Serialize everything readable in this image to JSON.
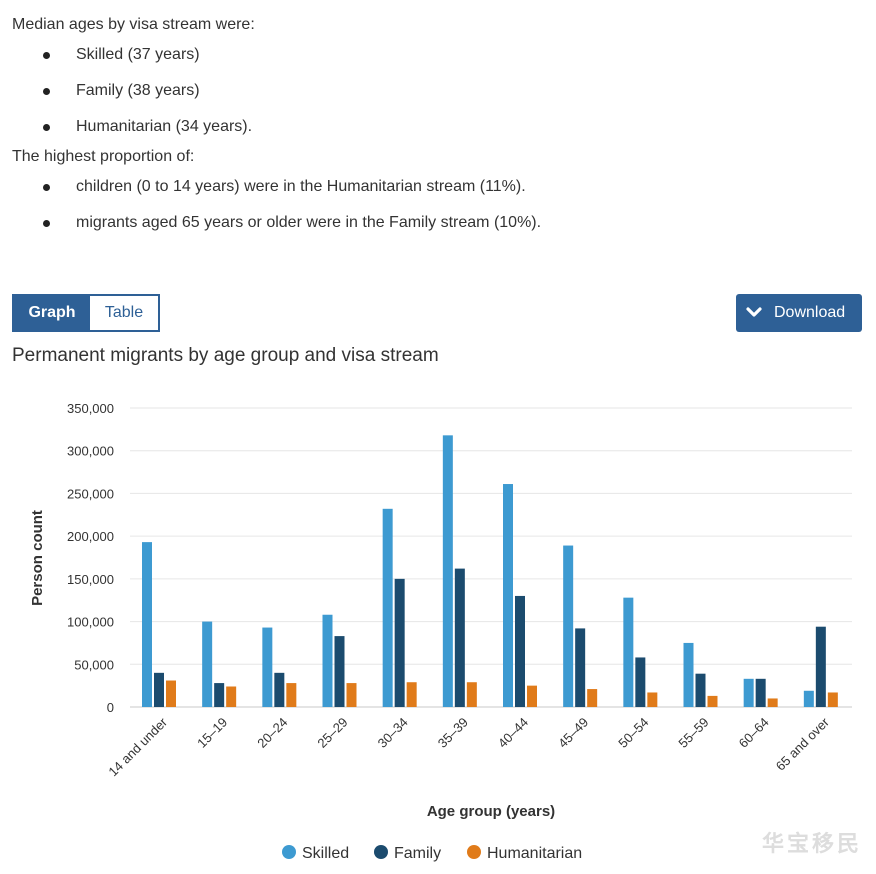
{
  "intro": {
    "p1": "Median ages by visa stream were:",
    "list1": [
      "Skilled (37 years)",
      "Family (38 years)",
      "Humanitarian (34 years)."
    ],
    "p2": "The highest proportion of:",
    "list2": [
      "children (0 to 14 years) were in the Humanitarian stream (11%).",
      "migrants aged 65 years or older were in the Family stream (10%)."
    ]
  },
  "controls": {
    "graph_label": "Graph",
    "table_label": "Table",
    "download_label": "Download",
    "download_icon": "chevron-down-icon"
  },
  "watermark": "华宝移民",
  "colors": {
    "accent": "#2e6096",
    "skilled": "#3d9ad1",
    "family": "#1b4b6e",
    "humanitarian": "#e07b1a"
  },
  "chart_data": {
    "type": "bar",
    "title": "Permanent migrants by age group and visa stream",
    "xlabel": "Age group (years)",
    "ylabel": "Person count",
    "ylim": [
      0,
      350000
    ],
    "yticks": [
      "0",
      "50,000",
      "100,000",
      "150,000",
      "200,000",
      "250,000",
      "300,000",
      "350,000"
    ],
    "ytick_values": [
      0,
      50000,
      100000,
      150000,
      200000,
      250000,
      300000,
      350000
    ],
    "grid": true,
    "legend_position": "bottom",
    "categories": [
      "14 and under",
      "15–19",
      "20–24",
      "25–29",
      "30–34",
      "35–39",
      "40–44",
      "45–49",
      "50–54",
      "55–59",
      "60–64",
      "65 and over"
    ],
    "series": [
      {
        "name": "Skilled",
        "color": "#3d9ad1",
        "values": [
          193000,
          100000,
          93000,
          108000,
          232000,
          318000,
          261000,
          189000,
          128000,
          75000,
          33000,
          19000
        ]
      },
      {
        "name": "Family",
        "color": "#1b4b6e",
        "values": [
          40000,
          28000,
          40000,
          83000,
          150000,
          162000,
          130000,
          92000,
          58000,
          39000,
          33000,
          94000
        ]
      },
      {
        "name": "Humanitarian",
        "color": "#e07b1a",
        "values": [
          31000,
          24000,
          28000,
          28000,
          29000,
          29000,
          25000,
          21000,
          17000,
          13000,
          10000,
          17000
        ]
      }
    ]
  }
}
